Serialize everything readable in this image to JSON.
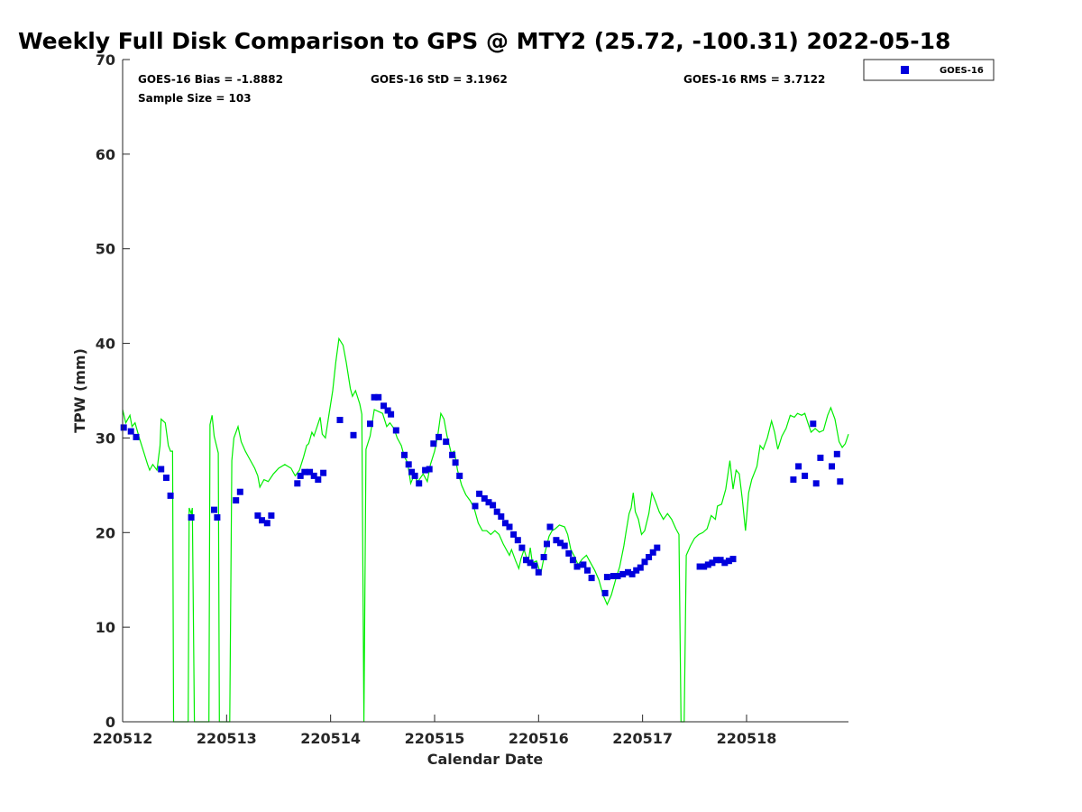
{
  "chart_data": {
    "type": "scatter",
    "title": "Weekly Full Disk Comparison to GPS @ MTY2 (25.72, -100.31) 2022-05-18",
    "xlabel": "Calendar Date",
    "ylabel": "TPW (mm)",
    "xlim": [
      0,
      6.98
    ],
    "ylim": [
      0,
      70
    ],
    "x_tick_labels": [
      "220512",
      "220513",
      "220514",
      "220515",
      "220516",
      "220517",
      "220518"
    ],
    "y_ticks": [
      0,
      10,
      20,
      30,
      40,
      50,
      60,
      70
    ],
    "grid": false,
    "legend_position": "top-right",
    "stats": {
      "bias": "GOES-16 Bias = -1.8882",
      "std": "GOES-16 StD = 3.1962",
      "rms": "GOES-16 RMS = 3.7122",
      "sample_size": "Sample Size = 103"
    },
    "series": [
      {
        "name": "GOES-16",
        "kind": "scatter",
        "color": "#0000dd",
        "points": [
          [
            0.01,
            31.1
          ],
          [
            0.08,
            30.7
          ],
          [
            0.13,
            30.1
          ],
          [
            0.37,
            26.7
          ],
          [
            0.42,
            25.8
          ],
          [
            0.46,
            23.9
          ],
          [
            0.66,
            21.6
          ],
          [
            0.88,
            22.4
          ],
          [
            0.91,
            21.6
          ],
          [
            1.09,
            23.4
          ],
          [
            1.13,
            24.3
          ],
          [
            1.3,
            21.8
          ],
          [
            1.34,
            21.3
          ],
          [
            1.39,
            21.0
          ],
          [
            1.43,
            21.8
          ],
          [
            1.68,
            25.2
          ],
          [
            1.71,
            26.0
          ],
          [
            1.75,
            26.4
          ],
          [
            1.8,
            26.4
          ],
          [
            1.84,
            26.0
          ],
          [
            1.88,
            25.6
          ],
          [
            1.93,
            26.3
          ],
          [
            2.09,
            31.9
          ],
          [
            2.22,
            30.3
          ],
          [
            2.38,
            31.5
          ],
          [
            2.42,
            34.3
          ],
          [
            2.46,
            34.3
          ],
          [
            2.51,
            33.4
          ],
          [
            2.55,
            32.9
          ],
          [
            2.58,
            32.5
          ],
          [
            2.63,
            30.8
          ],
          [
            2.71,
            28.2
          ],
          [
            2.75,
            27.2
          ],
          [
            2.78,
            26.4
          ],
          [
            2.81,
            26.0
          ],
          [
            2.85,
            25.2
          ],
          [
            2.91,
            26.6
          ],
          [
            2.95,
            26.7
          ],
          [
            2.99,
            29.4
          ],
          [
            3.04,
            30.1
          ],
          [
            3.11,
            29.6
          ],
          [
            3.17,
            28.2
          ],
          [
            3.2,
            27.4
          ],
          [
            3.24,
            26.0
          ],
          [
            3.39,
            22.8
          ],
          [
            3.43,
            24.1
          ],
          [
            3.48,
            23.6
          ],
          [
            3.52,
            23.2
          ],
          [
            3.56,
            22.9
          ],
          [
            3.6,
            22.2
          ],
          [
            3.64,
            21.7
          ],
          [
            3.68,
            21.0
          ],
          [
            3.72,
            20.6
          ],
          [
            3.76,
            19.8
          ],
          [
            3.8,
            19.2
          ],
          [
            3.84,
            18.4
          ],
          [
            3.88,
            17.1
          ],
          [
            3.92,
            16.8
          ],
          [
            3.96,
            16.5
          ],
          [
            4.0,
            15.8
          ],
          [
            4.05,
            17.4
          ],
          [
            4.08,
            18.8
          ],
          [
            4.11,
            20.6
          ],
          [
            4.17,
            19.2
          ],
          [
            4.21,
            18.9
          ],
          [
            4.25,
            18.6
          ],
          [
            4.29,
            17.8
          ],
          [
            4.33,
            17.1
          ],
          [
            4.37,
            16.4
          ],
          [
            4.43,
            16.6
          ],
          [
            4.47,
            16.0
          ],
          [
            4.51,
            15.2
          ],
          [
            4.64,
            13.6
          ],
          [
            4.66,
            15.3
          ],
          [
            4.72,
            15.4
          ],
          [
            4.76,
            15.4
          ],
          [
            4.81,
            15.6
          ],
          [
            4.86,
            15.8
          ],
          [
            4.9,
            15.6
          ],
          [
            4.94,
            16.0
          ],
          [
            4.98,
            16.3
          ],
          [
            5.02,
            16.9
          ],
          [
            5.06,
            17.4
          ],
          [
            5.1,
            17.9
          ],
          [
            5.14,
            18.4
          ],
          [
            5.55,
            16.4
          ],
          [
            5.59,
            16.4
          ],
          [
            5.63,
            16.6
          ],
          [
            5.67,
            16.8
          ],
          [
            5.71,
            17.1
          ],
          [
            5.75,
            17.1
          ],
          [
            5.79,
            16.8
          ],
          [
            5.83,
            17.0
          ],
          [
            5.87,
            17.2
          ],
          [
            6.45,
            25.6
          ],
          [
            6.5,
            27.0
          ],
          [
            6.56,
            26.0
          ],
          [
            6.64,
            31.5
          ],
          [
            6.67,
            25.2
          ],
          [
            6.71,
            27.9
          ],
          [
            6.82,
            27.0
          ],
          [
            6.87,
            28.3
          ],
          [
            6.9,
            25.4
          ]
        ]
      },
      {
        "name": "",
        "kind": "line",
        "color": "#00ee00",
        "points": [
          [
            0.0,
            33.0
          ],
          [
            0.03,
            31.6
          ],
          [
            0.07,
            32.4
          ],
          [
            0.09,
            31.2
          ],
          [
            0.12,
            31.6
          ],
          [
            0.16,
            30.0
          ],
          [
            0.2,
            28.6
          ],
          [
            0.24,
            27.2
          ],
          [
            0.26,
            26.6
          ],
          [
            0.29,
            27.2
          ],
          [
            0.33,
            26.6
          ],
          [
            0.36,
            29.2
          ],
          [
            0.37,
            32.0
          ],
          [
            0.41,
            31.6
          ],
          [
            0.44,
            29.2
          ],
          [
            0.46,
            28.6
          ],
          [
            0.48,
            28.6
          ],
          [
            0.49,
            0
          ],
          [
            0.63,
            0
          ],
          [
            0.64,
            22.6
          ],
          [
            0.66,
            22.0
          ],
          [
            0.67,
            22.6
          ],
          [
            0.69,
            0
          ],
          [
            0.83,
            0
          ],
          [
            0.84,
            31.4
          ],
          [
            0.86,
            32.4
          ],
          [
            0.88,
            30.2
          ],
          [
            0.92,
            28.4
          ],
          [
            0.93,
            0
          ],
          [
            1.03,
            0
          ],
          [
            1.05,
            27.6
          ],
          [
            1.07,
            30.0
          ],
          [
            1.11,
            31.2
          ],
          [
            1.14,
            29.6
          ],
          [
            1.18,
            28.6
          ],
          [
            1.22,
            27.8
          ],
          [
            1.27,
            26.8
          ],
          [
            1.3,
            26.0
          ],
          [
            1.32,
            24.8
          ],
          [
            1.36,
            25.6
          ],
          [
            1.4,
            25.4
          ],
          [
            1.45,
            26.2
          ],
          [
            1.5,
            26.8
          ],
          [
            1.56,
            27.2
          ],
          [
            1.62,
            26.8
          ],
          [
            1.66,
            26.0
          ],
          [
            1.7,
            26.6
          ],
          [
            1.74,
            28.0
          ],
          [
            1.77,
            29.2
          ],
          [
            1.79,
            29.4
          ],
          [
            1.82,
            30.6
          ],
          [
            1.84,
            30.2
          ],
          [
            1.87,
            31.2
          ],
          [
            1.9,
            32.2
          ],
          [
            1.92,
            30.4
          ],
          [
            1.95,
            30.0
          ],
          [
            1.98,
            32.2
          ],
          [
            2.02,
            35.0
          ],
          [
            2.05,
            38.0
          ],
          [
            2.08,
            40.5
          ],
          [
            2.12,
            39.8
          ],
          [
            2.15,
            38.0
          ],
          [
            2.19,
            35.2
          ],
          [
            2.21,
            34.4
          ],
          [
            2.24,
            35.0
          ],
          [
            2.28,
            33.6
          ],
          [
            2.3,
            32.5
          ],
          [
            2.32,
            0
          ],
          [
            2.34,
            28.8
          ],
          [
            2.38,
            30.2
          ],
          [
            2.42,
            33.0
          ],
          [
            2.46,
            32.8
          ],
          [
            2.5,
            32.6
          ],
          [
            2.54,
            31.2
          ],
          [
            2.57,
            31.6
          ],
          [
            2.61,
            31.0
          ],
          [
            2.64,
            30.0
          ],
          [
            2.68,
            29.2
          ],
          [
            2.71,
            28.0
          ],
          [
            2.74,
            27.4
          ],
          [
            2.77,
            25.2
          ],
          [
            2.8,
            26.0
          ],
          [
            2.84,
            25.4
          ],
          [
            2.89,
            26.2
          ],
          [
            2.93,
            25.4
          ],
          [
            2.96,
            27.2
          ],
          [
            3.0,
            28.6
          ],
          [
            3.03,
            30.2
          ],
          [
            3.06,
            32.6
          ],
          [
            3.09,
            32.0
          ],
          [
            3.12,
            30.2
          ],
          [
            3.16,
            28.4
          ],
          [
            3.19,
            28.6
          ],
          [
            3.22,
            26.6
          ],
          [
            3.26,
            25.0
          ],
          [
            3.3,
            24.0
          ],
          [
            3.34,
            23.4
          ],
          [
            3.38,
            22.6
          ],
          [
            3.42,
            21.0
          ],
          [
            3.46,
            20.2
          ],
          [
            3.5,
            20.2
          ],
          [
            3.54,
            19.8
          ],
          [
            3.58,
            20.2
          ],
          [
            3.62,
            19.8
          ],
          [
            3.66,
            18.8
          ],
          [
            3.7,
            18.0
          ],
          [
            3.72,
            17.6
          ],
          [
            3.74,
            18.2
          ],
          [
            3.78,
            17.0
          ],
          [
            3.81,
            16.2
          ],
          [
            3.83,
            17.2
          ],
          [
            3.86,
            18.2
          ],
          [
            3.9,
            16.8
          ],
          [
            3.92,
            18.4
          ],
          [
            3.94,
            16.8
          ],
          [
            3.98,
            17.0
          ],
          [
            4.02,
            15.6
          ],
          [
            4.06,
            17.8
          ],
          [
            4.1,
            19.6
          ],
          [
            4.13,
            20.2
          ],
          [
            4.16,
            20.4
          ],
          [
            4.2,
            20.8
          ],
          [
            4.25,
            20.6
          ],
          [
            4.28,
            19.8
          ],
          [
            4.31,
            18.2
          ],
          [
            4.34,
            17.6
          ],
          [
            4.38,
            16.6
          ],
          [
            4.42,
            17.2
          ],
          [
            4.46,
            17.6
          ],
          [
            4.5,
            16.8
          ],
          [
            4.54,
            16.0
          ],
          [
            4.58,
            15.0
          ],
          [
            4.62,
            13.4
          ],
          [
            4.66,
            12.4
          ],
          [
            4.7,
            13.4
          ],
          [
            4.74,
            15.0
          ],
          [
            4.78,
            16.4
          ],
          [
            4.82,
            18.6
          ],
          [
            4.84,
            20.0
          ],
          [
            4.87,
            22.0
          ],
          [
            4.89,
            22.6
          ],
          [
            4.91,
            24.2
          ],
          [
            4.93,
            22.2
          ],
          [
            4.96,
            21.4
          ],
          [
            4.99,
            19.8
          ],
          [
            5.02,
            20.2
          ],
          [
            5.06,
            22.0
          ],
          [
            5.09,
            24.2
          ],
          [
            5.12,
            23.4
          ],
          [
            5.16,
            22.2
          ],
          [
            5.2,
            21.4
          ],
          [
            5.24,
            22.0
          ],
          [
            5.28,
            21.4
          ],
          [
            5.32,
            20.4
          ],
          [
            5.35,
            19.8
          ],
          [
            5.37,
            0
          ],
          [
            5.4,
            0
          ],
          [
            5.42,
            17.6
          ],
          [
            5.46,
            18.6
          ],
          [
            5.5,
            19.4
          ],
          [
            5.54,
            19.8
          ],
          [
            5.58,
            20.0
          ],
          [
            5.62,
            20.4
          ],
          [
            5.66,
            21.8
          ],
          [
            5.7,
            21.4
          ],
          [
            5.72,
            22.8
          ],
          [
            5.76,
            23.0
          ],
          [
            5.8,
            24.6
          ],
          [
            5.84,
            27.6
          ],
          [
            5.87,
            24.6
          ],
          [
            5.9,
            26.6
          ],
          [
            5.93,
            26.2
          ],
          [
            5.96,
            23.4
          ],
          [
            5.99,
            20.2
          ],
          [
            6.02,
            24.2
          ],
          [
            6.05,
            25.6
          ],
          [
            6.1,
            27.0
          ],
          [
            6.13,
            29.2
          ],
          [
            6.16,
            28.8
          ],
          [
            6.2,
            30.0
          ],
          [
            6.24,
            31.8
          ],
          [
            6.27,
            30.6
          ],
          [
            6.3,
            28.8
          ],
          [
            6.34,
            30.2
          ],
          [
            6.38,
            31.0
          ],
          [
            6.42,
            32.4
          ],
          [
            6.46,
            32.2
          ],
          [
            6.49,
            32.6
          ],
          [
            6.53,
            32.4
          ],
          [
            6.56,
            32.6
          ],
          [
            6.59,
            31.6
          ],
          [
            6.62,
            30.6
          ],
          [
            6.66,
            31.0
          ],
          [
            6.7,
            30.6
          ],
          [
            6.74,
            30.8
          ],
          [
            6.78,
            32.4
          ],
          [
            6.81,
            33.2
          ],
          [
            6.85,
            32.0
          ],
          [
            6.89,
            29.6
          ],
          [
            6.92,
            29.0
          ],
          [
            6.95,
            29.4
          ],
          [
            6.98,
            30.4
          ]
        ]
      }
    ]
  }
}
